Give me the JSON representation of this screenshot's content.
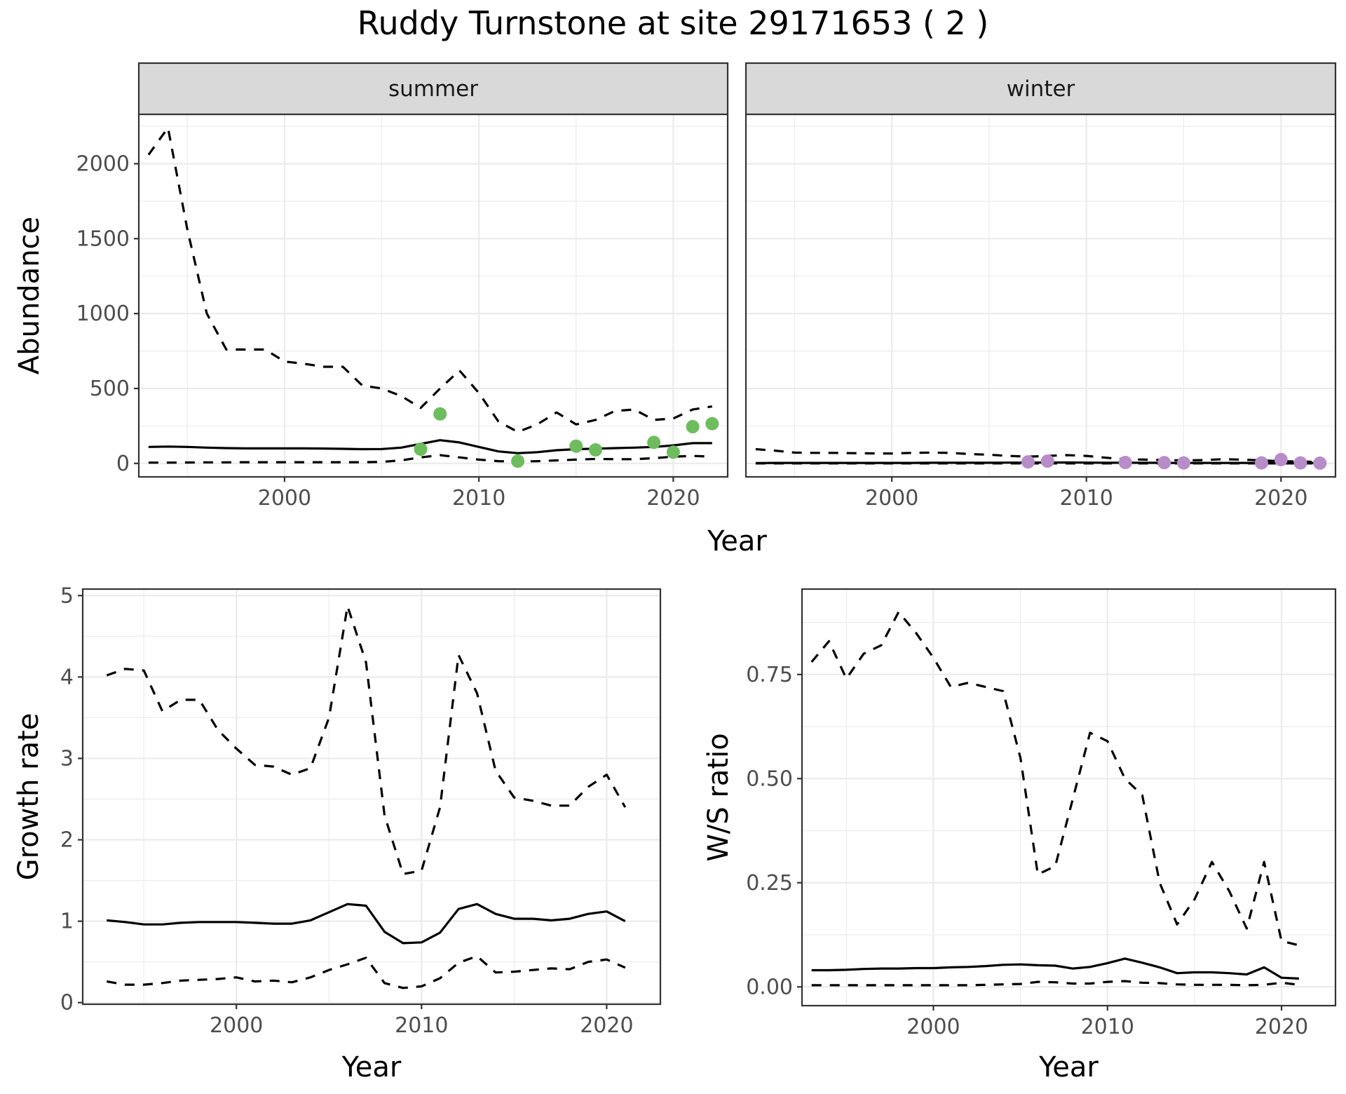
{
  "title": "Ruddy Turnstone at site 29171653 ( 2 )",
  "colors": {
    "summer_points": "#6dbd5e",
    "winter_points": "#b88cc9",
    "lines": "#000000",
    "strip": "#d9d9d9"
  },
  "chart_data": [
    {
      "type": "line",
      "name": "abundance",
      "ylabel": "Abundance",
      "xlabel": "Year",
      "xlim": [
        1992.5,
        2022.8
      ],
      "ylim": [
        -90,
        2330
      ],
      "x_ticks": [
        2000,
        2010,
        2020
      ],
      "y_ticks": [
        0,
        500,
        1000,
        1500,
        2000
      ],
      "facets": [
        {
          "label": "summer",
          "point_color": "#6dbd5e",
          "series": [
            {
              "style": "solid",
              "x": [
                1993,
                1994,
                1995,
                1996,
                1997,
                1998,
                1999,
                2000,
                2001,
                2002,
                2003,
                2004,
                2005,
                2006,
                2007,
                2008,
                2009,
                2010,
                2011,
                2012,
                2013,
                2014,
                2015,
                2016,
                2017,
                2018,
                2019,
                2020,
                2021,
                2022
              ],
              "y": [
                110,
                112,
                110,
                105,
                102,
                100,
                100,
                100,
                100,
                99,
                97,
                95,
                96,
                105,
                130,
                155,
                140,
                110,
                80,
                68,
                75,
                88,
                95,
                98,
                102,
                105,
                110,
                120,
                135,
                135
              ]
            },
            {
              "style": "dashed",
              "x": [
                1993,
                1994,
                1995,
                1996,
                1997,
                1998,
                1999,
                2000,
                2001,
                2002,
                2003,
                2004,
                2005,
                2006,
                2007,
                2008,
                2009,
                2010,
                2011,
                2012,
                2013,
                2014,
                2015,
                2016,
                2017,
                2018,
                2019,
                2020,
                2021,
                2022
              ],
              "y": [
                2060,
                2240,
                1560,
                1000,
                760,
                760,
                760,
                680,
                665,
                645,
                645,
                520,
                500,
                450,
                370,
                500,
                620,
                470,
                280,
                210,
                260,
                340,
                260,
                290,
                350,
                360,
                290,
                300,
                360,
                380
              ]
            },
            {
              "style": "dashed",
              "x": [
                1993,
                1994,
                1995,
                1996,
                1997,
                1998,
                1999,
                2000,
                2001,
                2002,
                2003,
                2004,
                2005,
                2006,
                2007,
                2008,
                2009,
                2010,
                2011,
                2012,
                2013,
                2014,
                2015,
                2016,
                2017,
                2018,
                2019,
                2020,
                2021,
                2022
              ],
              "y": [
                5,
                5,
                6,
                7,
                7,
                8,
                8,
                8,
                8,
                8,
                8,
                8,
                10,
                20,
                40,
                55,
                40,
                25,
                15,
                12,
                15,
                20,
                25,
                30,
                28,
                28,
                35,
                45,
                50,
                45
              ]
            }
          ],
          "points": {
            "x": [
              2007,
              2008,
              2012,
              2015,
              2016,
              2019,
              2020,
              2021,
              2022
            ],
            "y": [
              95,
              330,
              15,
              115,
              90,
              140,
              75,
              245,
              265
            ]
          }
        },
        {
          "label": "winter",
          "point_color": "#b88cc9",
          "series": [
            {
              "style": "solid",
              "x": [
                1993,
                1994,
                1995,
                1996,
                1997,
                1998,
                1999,
                2000,
                2001,
                2002,
                2003,
                2004,
                2005,
                2006,
                2007,
                2008,
                2009,
                2010,
                2011,
                2012,
                2013,
                2014,
                2015,
                2016,
                2017,
                2018,
                2019,
                2020,
                2021,
                2022
              ],
              "y": [
                2,
                3,
                3,
                3,
                3,
                3,
                3,
                3,
                3,
                4,
                4,
                4,
                4,
                5,
                5,
                6,
                6,
                5,
                4,
                4,
                4,
                3,
                3,
                3,
                3,
                3,
                3,
                3,
                3,
                3
              ]
            },
            {
              "style": "dashed",
              "x": [
                1993,
                1994,
                1995,
                1996,
                1997,
                1998,
                1999,
                2000,
                2001,
                2002,
                2003,
                2004,
                2005,
                2006,
                2007,
                2008,
                2009,
                2010,
                2011,
                2012,
                2013,
                2014,
                2015,
                2016,
                2017,
                2018,
                2019,
                2020,
                2021,
                2022
              ],
              "y": [
                95,
                85,
                72,
                70,
                70,
                68,
                67,
                66,
                70,
                72,
                70,
                62,
                58,
                50,
                45,
                50,
                55,
                50,
                38,
                28,
                25,
                22,
                20,
                22,
                28,
                25,
                20,
                15,
                12,
                10
              ]
            },
            {
              "style": "dashed",
              "x": [
                1993,
                1994,
                1995,
                1996,
                1997,
                1998,
                1999,
                2000,
                2001,
                2002,
                2003,
                2004,
                2005,
                2006,
                2007,
                2008,
                2009,
                2010,
                2011,
                2012,
                2013,
                2014,
                2015,
                2016,
                2017,
                2018,
                2019,
                2020,
                2021,
                2022
              ],
              "y": [
                0,
                0,
                0,
                0,
                0,
                0,
                0,
                0,
                0,
                0,
                0,
                0,
                0,
                0,
                0,
                0,
                0,
                0,
                0,
                0,
                0,
                0,
                0,
                0,
                0,
                0,
                0,
                0,
                0,
                0
              ]
            }
          ],
          "points": {
            "x": [
              2007,
              2008,
              2012,
              2014,
              2015,
              2019,
              2020,
              2021,
              2022
            ],
            "y": [
              10,
              15,
              6,
              5,
              3,
              3,
              25,
              3,
              2
            ]
          }
        }
      ]
    },
    {
      "type": "line",
      "name": "growth",
      "ylabel": "Growth rate",
      "xlabel": "Year",
      "xlim": [
        1991.7,
        2022.9
      ],
      "ylim": [
        -0.02,
        5.08
      ],
      "x_ticks": [
        2000,
        2010,
        2020
      ],
      "y_ticks": [
        0,
        1,
        2,
        3,
        4,
        5
      ],
      "series": [
        {
          "style": "solid",
          "x": [
            1993,
            1994,
            1995,
            1996,
            1997,
            1998,
            1999,
            2000,
            2001,
            2002,
            2003,
            2004,
            2005,
            2006,
            2007,
            2008,
            2009,
            2010,
            2011,
            2012,
            2013,
            2014,
            2015,
            2016,
            2017,
            2018,
            2019,
            2020,
            2021
          ],
          "y": [
            1.01,
            0.99,
            0.96,
            0.96,
            0.98,
            0.99,
            0.99,
            0.99,
            0.98,
            0.97,
            0.97,
            1.01,
            1.11,
            1.21,
            1.19,
            0.87,
            0.73,
            0.74,
            0.86,
            1.15,
            1.21,
            1.09,
            1.03,
            1.03,
            1.01,
            1.03,
            1.09,
            1.12,
            1.0
          ]
        },
        {
          "style": "dashed",
          "x": [
            1993,
            1994,
            1995,
            1996,
            1997,
            1998,
            1999,
            2000,
            2001,
            2002,
            2003,
            2004,
            2005,
            2006,
            2007,
            2008,
            2009,
            2010,
            2011,
            2012,
            2013,
            2014,
            2015,
            2016,
            2017,
            2018,
            2019,
            2020,
            2021
          ],
          "y": [
            4.02,
            4.1,
            4.08,
            3.58,
            3.72,
            3.72,
            3.35,
            3.12,
            2.92,
            2.9,
            2.8,
            2.88,
            3.5,
            4.87,
            4.18,
            2.3,
            1.58,
            1.62,
            2.4,
            4.27,
            3.8,
            2.85,
            2.52,
            2.48,
            2.42,
            2.42,
            2.65,
            2.8,
            2.4
          ]
        },
        {
          "style": "dashed",
          "x": [
            1993,
            1994,
            1995,
            1996,
            1997,
            1998,
            1999,
            2000,
            2001,
            2002,
            2003,
            2004,
            2005,
            2006,
            2007,
            2008,
            2009,
            2010,
            2011,
            2012,
            2013,
            2014,
            2015,
            2016,
            2017,
            2018,
            2019,
            2020,
            2021
          ],
          "y": [
            0.26,
            0.22,
            0.22,
            0.24,
            0.27,
            0.28,
            0.29,
            0.31,
            0.26,
            0.27,
            0.25,
            0.31,
            0.4,
            0.47,
            0.55,
            0.24,
            0.18,
            0.2,
            0.3,
            0.49,
            0.57,
            0.37,
            0.38,
            0.4,
            0.42,
            0.41,
            0.5,
            0.53,
            0.43
          ]
        }
      ]
    },
    {
      "type": "line",
      "name": "ratio",
      "ylabel": "W/S ratio",
      "xlabel": "Year",
      "xlim": [
        1992.45,
        2023.1
      ],
      "ylim": [
        -0.045,
        0.955
      ],
      "x_ticks": [
        2000,
        2010,
        2020
      ],
      "y_ticks": [
        "0.00",
        "0.25",
        "0.50",
        "0.75"
      ],
      "y_tick_values": [
        0,
        0.25,
        0.5,
        0.75
      ],
      "series": [
        {
          "style": "solid",
          "x": [
            1993,
            1994,
            1995,
            1996,
            1997,
            1998,
            1999,
            2000,
            2001,
            2002,
            2003,
            2004,
            2005,
            2006,
            2007,
            2008,
            2009,
            2010,
            2011,
            2012,
            2013,
            2014,
            2015,
            2016,
            2017,
            2018,
            2019,
            2020,
            2021
          ],
          "y": [
            0.04,
            0.04,
            0.041,
            0.043,
            0.044,
            0.044,
            0.045,
            0.045,
            0.047,
            0.048,
            0.05,
            0.053,
            0.054,
            0.052,
            0.051,
            0.044,
            0.048,
            0.057,
            0.068,
            0.058,
            0.047,
            0.033,
            0.035,
            0.035,
            0.033,
            0.03,
            0.047,
            0.022,
            0.02
          ]
        },
        {
          "style": "dashed",
          "x": [
            1993,
            1994,
            1995,
            1996,
            1997,
            1998,
            1999,
            2000,
            2001,
            2002,
            2003,
            2004,
            2005,
            2006,
            2007,
            2008,
            2009,
            2010,
            2011,
            2012,
            2013,
            2014,
            2015,
            2016,
            2017,
            2018,
            2019,
            2020,
            2021
          ],
          "y": [
            0.78,
            0.83,
            0.74,
            0.8,
            0.82,
            0.9,
            0.85,
            0.79,
            0.72,
            0.73,
            0.72,
            0.71,
            0.55,
            0.27,
            0.29,
            0.45,
            0.61,
            0.59,
            0.5,
            0.46,
            0.25,
            0.15,
            0.21,
            0.3,
            0.23,
            0.14,
            0.3,
            0.11,
            0.1
          ]
        },
        {
          "style": "dashed",
          "x": [
            1993,
            1994,
            1995,
            1996,
            1997,
            1998,
            1999,
            2000,
            2001,
            2002,
            2003,
            2004,
            2005,
            2006,
            2007,
            2008,
            2009,
            2010,
            2011,
            2012,
            2013,
            2014,
            2015,
            2016,
            2017,
            2018,
            2019,
            2020,
            2021
          ],
          "y": [
            0.004,
            0.004,
            0.004,
            0.004,
            0.004,
            0.004,
            0.004,
            0.004,
            0.004,
            0.004,
            0.005,
            0.006,
            0.007,
            0.012,
            0.011,
            0.008,
            0.008,
            0.012,
            0.014,
            0.01,
            0.009,
            0.006,
            0.005,
            0.005,
            0.005,
            0.004,
            0.005,
            0.01,
            0.005
          ]
        }
      ]
    }
  ]
}
